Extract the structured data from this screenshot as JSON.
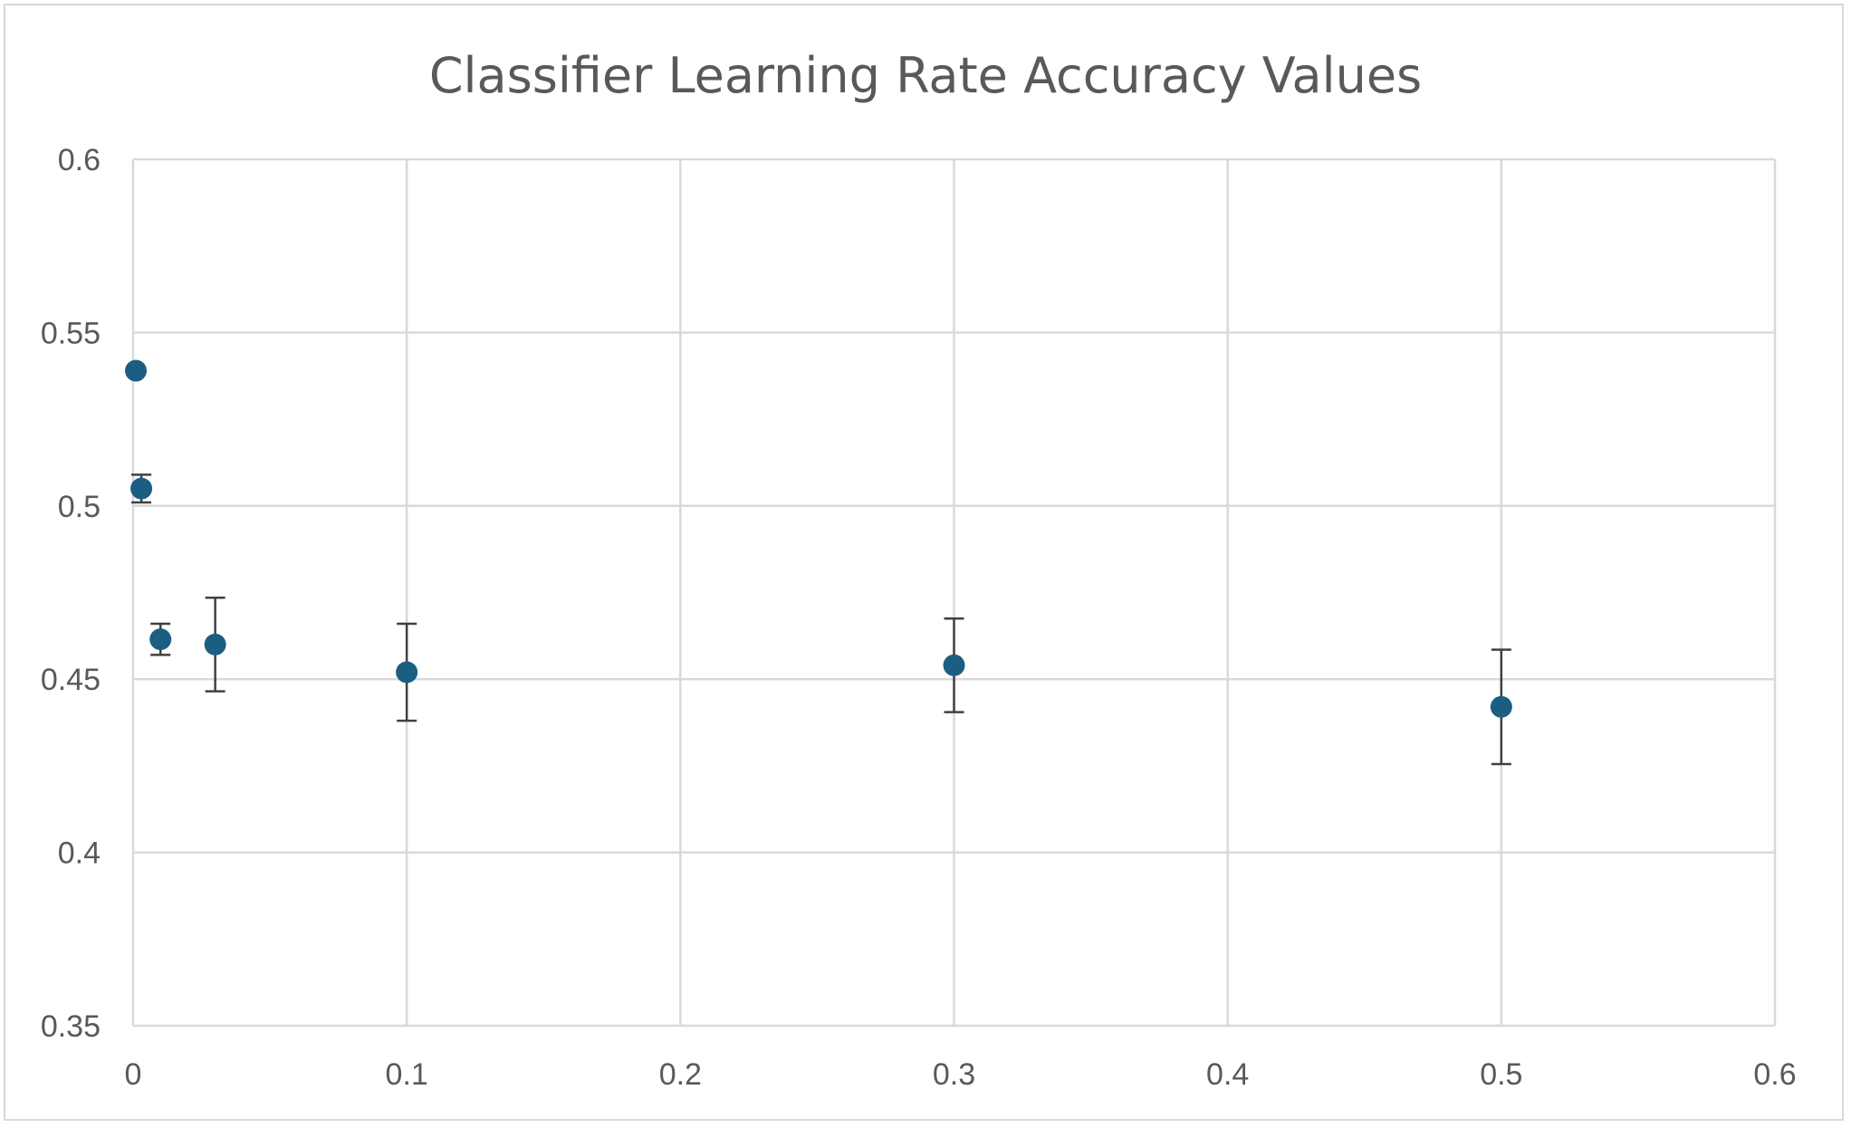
{
  "chart_data": {
    "type": "scatter",
    "title": "Classifier Learning Rate Accuracy Values",
    "xlabel": "",
    "ylabel": "",
    "xlim": [
      0,
      0.6
    ],
    "ylim": [
      0.35,
      0.6
    ],
    "x_ticks": [
      0,
      0.1,
      0.2,
      0.3,
      0.4,
      0.5,
      0.6
    ],
    "y_ticks": [
      0.35,
      0.4,
      0.45,
      0.5,
      0.55,
      0.6
    ],
    "x_tick_labels": [
      "0",
      "0.1",
      "0.2",
      "0.3",
      "0.4",
      "0.5",
      "0.6"
    ],
    "y_tick_labels": [
      "0.35",
      "0.4",
      "0.45",
      "0.5",
      "0.55",
      "0.6"
    ],
    "grid": true,
    "legend": "none",
    "marker_color": "#1b5e82",
    "error_bar_color": "#404040",
    "points": [
      {
        "x": 0.001,
        "y": 0.539,
        "err": 0
      },
      {
        "x": 0.003,
        "y": 0.505,
        "err": 0.004
      },
      {
        "x": 0.01,
        "y": 0.4615,
        "err": 0.0045
      },
      {
        "x": 0.03,
        "y": 0.46,
        "err": 0.0135
      },
      {
        "x": 0.1,
        "y": 0.452,
        "err": 0.014
      },
      {
        "x": 0.3,
        "y": 0.454,
        "err": 0.0135
      },
      {
        "x": 0.5,
        "y": 0.442,
        "err": 0.0165
      }
    ]
  }
}
